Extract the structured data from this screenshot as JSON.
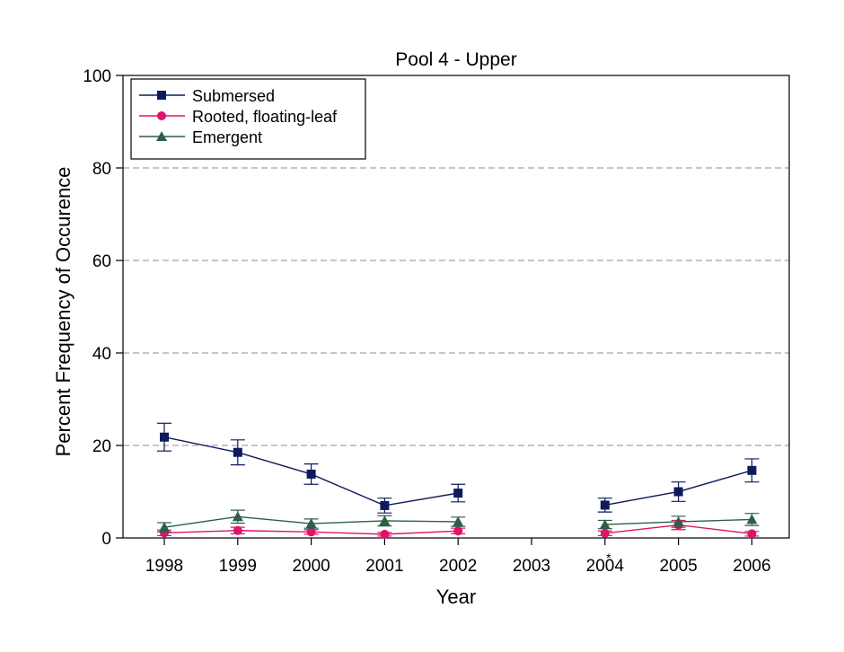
{
  "chart_data": {
    "type": "line",
    "title": "Pool 4 - Upper",
    "xlabel": "Year",
    "ylabel": "Percent Frequency of Occurence",
    "categories": [
      "1998",
      "1999",
      "2000",
      "2001",
      "2002",
      "2003",
      "2004",
      "2005",
      "2006"
    ],
    "ylim": [
      0,
      100
    ],
    "yticks": [
      0,
      20,
      40,
      60,
      80,
      100
    ],
    "grid": "horizontal dashed",
    "legend_position": "top-left",
    "series": [
      {
        "name": "Submersed",
        "color": "#0d1a5c",
        "marker": "square",
        "values": [
          21.8,
          18.5,
          13.8,
          7.0,
          9.7,
          null,
          7.1,
          10.0,
          14.6
        ],
        "err": [
          3.0,
          2.7,
          2.2,
          1.6,
          1.9,
          null,
          1.5,
          2.1,
          2.5
        ]
      },
      {
        "name": "Rooted, floating-leaf",
        "color": "#e0136b",
        "marker": "circle",
        "values": [
          1.1,
          1.6,
          1.3,
          0.8,
          1.5,
          null,
          1.0,
          2.8,
          0.9
        ],
        "err": [
          0.6,
          0.7,
          0.5,
          0.4,
          0.6,
          null,
          0.5,
          1.0,
          0.5
        ]
      },
      {
        "name": "Emergent",
        "color": "#2f5e48",
        "marker": "triangle",
        "values": [
          2.3,
          4.6,
          3.1,
          3.7,
          3.5,
          null,
          2.9,
          3.5,
          4.0
        ],
        "err": [
          1.0,
          1.4,
          1.0,
          1.1,
          1.0,
          null,
          0.9,
          1.2,
          1.3
        ]
      }
    ],
    "annotations": [
      {
        "text": "*",
        "category": "2004"
      }
    ]
  }
}
